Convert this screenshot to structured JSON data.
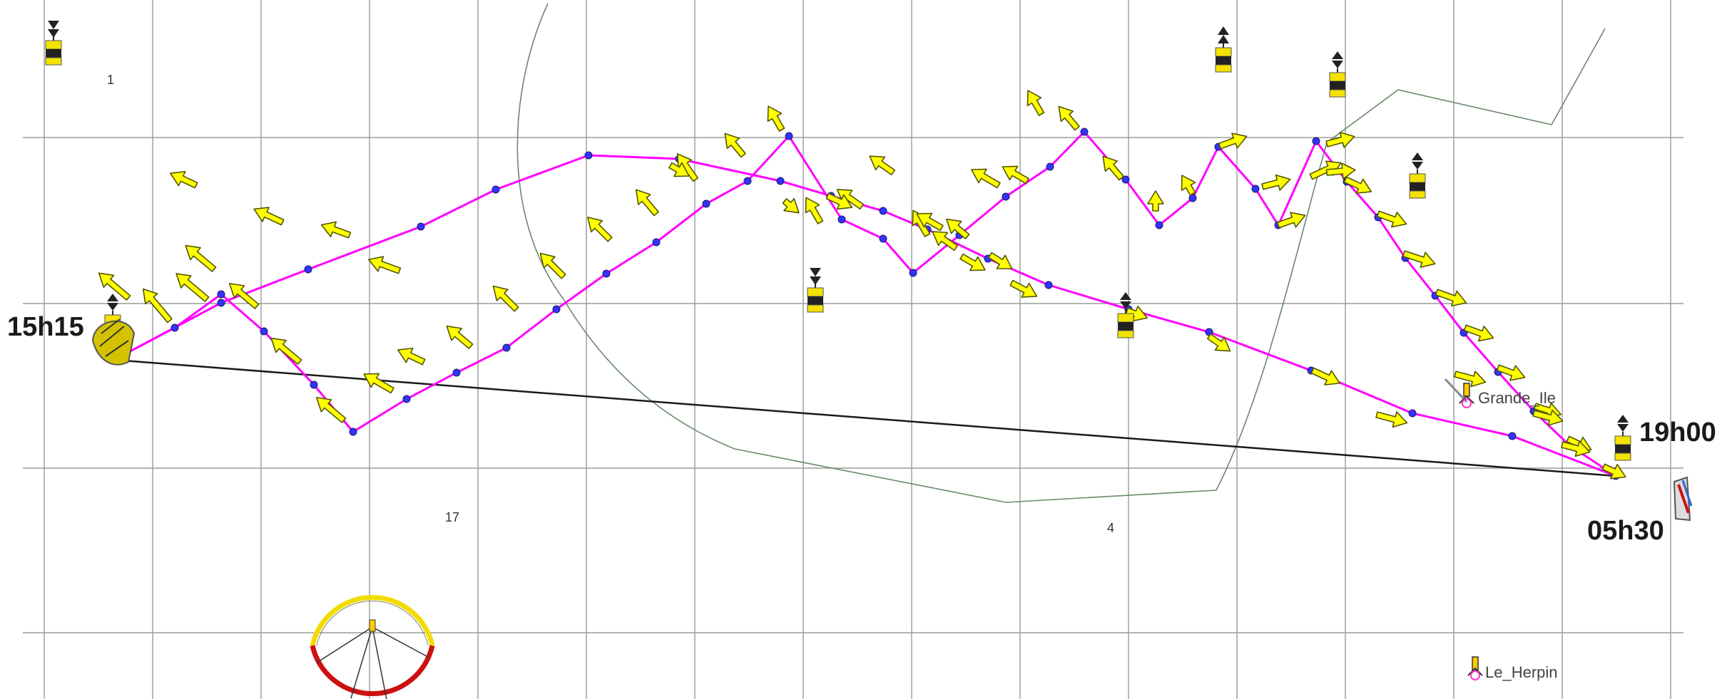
{
  "map": {
    "times": {
      "start": "15h15",
      "end_top": "19h00",
      "end_bottom": "05h30"
    },
    "depth_soundings": [
      "1",
      "17",
      "4"
    ],
    "places": [
      "Grande_Ile",
      "Le_Herpin"
    ],
    "colors": {
      "background": "#ffffff",
      "grid": "#9a9a9a",
      "route": "#ff00ff",
      "direct_line": "#1a1a1a",
      "waypoint": "#3333ff",
      "current_arrow": "#ffff00",
      "current_arrow_outline": "#555500",
      "coastline": "#6a8a6a",
      "buoy_yellow": "#f4e200",
      "buoy_black": "#222222",
      "compass_yellow": "#f2dc00",
      "compass_red": "#cc1111"
    },
    "icons": [
      "cardinal-buoy-icon",
      "lighthouse-icon",
      "compass-rose-icon",
      "boat-icon",
      "current-arrow-icon"
    ]
  }
}
